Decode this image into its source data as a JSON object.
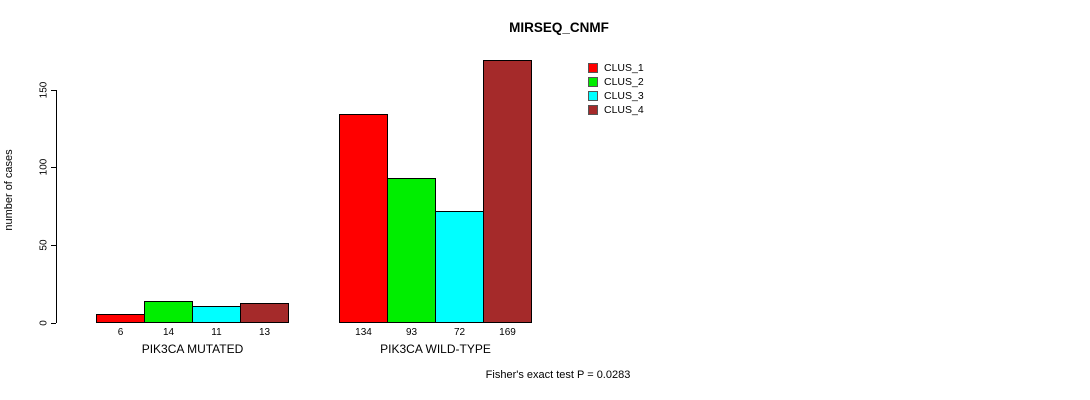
{
  "title": "MIRSEQ_CNMF",
  "footer": "Fisher's exact test P = 0.0283",
  "chart_data": {
    "type": "bar",
    "title": "MIRSEQ_CNMF",
    "xlabel": "",
    "ylabel": "number of cases",
    "ylim": [
      0,
      150
    ],
    "yticks": [
      0,
      50,
      100,
      150
    ],
    "grid": false,
    "legend_position": "top-right",
    "categories": [
      "PIK3CA MUTATED",
      "PIK3CA WILD-TYPE"
    ],
    "series": [
      {
        "name": "CLUS_1",
        "color": "#FF0000",
        "values": [
          6,
          134
        ]
      },
      {
        "name": "CLUS_2",
        "color": "#00EE00",
        "values": [
          14,
          93
        ]
      },
      {
        "name": "CLUS_3",
        "color": "#00FFFF",
        "values": [
          11,
          72
        ]
      },
      {
        "name": "CLUS_4",
        "color": "#A52A2A",
        "values": [
          13,
          169
        ]
      }
    ],
    "bar_value_labels_shown": true,
    "annotation": "Fisher's exact test P = 0.0283"
  }
}
